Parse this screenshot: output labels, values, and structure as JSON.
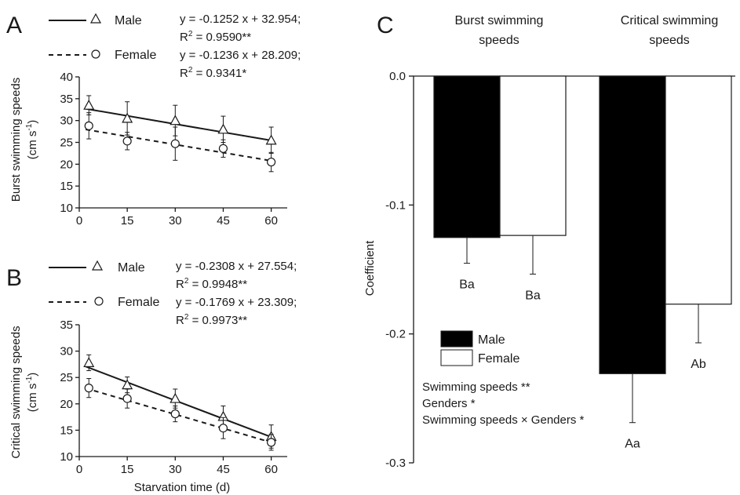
{
  "chart_data": [
    {
      "panel": "A",
      "type": "scatter",
      "xlabel": "",
      "ylabel_line1": "Burst swimming speeds",
      "ylabel_line2_base": "(cm s",
      "ylabel_line2_sup": "-1",
      "ylabel_line2_end": ")",
      "xlim": [
        0,
        65
      ],
      "ylim": [
        10,
        40
      ],
      "xticks": [
        "0",
        "15",
        "30",
        "45",
        "60"
      ],
      "yticks": [
        "10",
        "15",
        "20",
        "25",
        "30",
        "35",
        "40"
      ],
      "series": [
        {
          "name": "Male",
          "marker": "triangle",
          "line": "solid",
          "x": [
            3,
            15,
            30,
            45,
            60
          ],
          "y": [
            33.5,
            30.5,
            30.0,
            28.0,
            25.5
          ],
          "err": [
            2.2,
            3.8,
            3.5,
            3.0,
            3.0
          ],
          "fit": {
            "slope": -0.1252,
            "intercept": 32.954
          },
          "eq": "y = -0.1252 x + 32.954;",
          "r2_prefix": "R",
          "r2_exp": "2",
          "r2_value": " = 0.9590**"
        },
        {
          "name": "Female",
          "marker": "circle",
          "line": "dashed",
          "x": [
            3,
            15,
            30,
            45,
            60
          ],
          "y": [
            28.8,
            25.3,
            24.7,
            23.6,
            20.5
          ],
          "err": [
            3.0,
            2.0,
            3.8,
            2.0,
            2.2
          ],
          "fit": {
            "slope": -0.1236,
            "intercept": 28.209
          },
          "eq": "y = -0.1236 x + 28.209;",
          "r2_prefix": "R",
          "r2_exp": "2",
          "r2_value": " = 0.9341*"
        }
      ]
    },
    {
      "panel": "B",
      "type": "scatter",
      "xlabel": "Starvation time (d)",
      "ylabel_line1": "Critical swimming speeds",
      "ylabel_line2_base": "(cm s",
      "ylabel_line2_sup": "-1",
      "ylabel_line2_end": ")",
      "xlim": [
        0,
        65
      ],
      "ylim": [
        10,
        35
      ],
      "xticks": [
        "0",
        "15",
        "30",
        "45",
        "60"
      ],
      "yticks": [
        "10",
        "15",
        "20",
        "25",
        "30",
        "35"
      ],
      "series": [
        {
          "name": "Male",
          "marker": "triangle",
          "line": "solid",
          "x": [
            3,
            15,
            30,
            45,
            60
          ],
          "y": [
            27.8,
            23.6,
            21.0,
            17.6,
            13.8
          ],
          "err": [
            1.5,
            1.5,
            1.8,
            2.0,
            2.2
          ],
          "fit": {
            "slope": -0.2308,
            "intercept": 27.554
          },
          "eq": "y = -0.2308 x + 27.554;",
          "r2_prefix": "R",
          "r2_exp": "2",
          "r2_value": " = 0.9948**"
        },
        {
          "name": "Female",
          "marker": "circle",
          "line": "dashed",
          "x": [
            3,
            15,
            30,
            45,
            60
          ],
          "y": [
            23.0,
            21.0,
            18.1,
            15.4,
            12.7
          ],
          "err": [
            1.8,
            1.8,
            1.5,
            2.0,
            1.5
          ],
          "fit": {
            "slope": -0.1769,
            "intercept": 23.309
          },
          "eq": "y = -0.1769 x + 23.309;",
          "r2_prefix": "R",
          "r2_exp": "2",
          "r2_value": " = 0.9973**"
        }
      ]
    },
    {
      "panel": "C",
      "type": "bar",
      "ylabel": "Coefficient",
      "ylim": [
        -0.3,
        0.0
      ],
      "yticks": [
        "0.0",
        "-0.1",
        "-0.2",
        "-0.3"
      ],
      "categories": [
        "Burst swimming speeds",
        "Critical swimming speeds"
      ],
      "category_lines": [
        [
          "Burst swimming",
          "speeds"
        ],
        [
          "Critical swimming",
          "speeds"
        ]
      ],
      "series": [
        {
          "name": "Male",
          "color": "#000000",
          "values": [
            -0.1252,
            -0.2308
          ],
          "err": [
            0.02,
            0.038
          ],
          "labels": [
            "Ba",
            "Aa"
          ]
        },
        {
          "name": "Female",
          "color": "#ffffff",
          "values": [
            -0.1236,
            -0.1769
          ],
          "err": [
            0.03,
            0.03
          ],
          "labels": [
            "Ba",
            "Ab"
          ]
        }
      ],
      "annotations": [
        "Swimming speeds **",
        "Genders *",
        "Swimming speeds × Genders *"
      ]
    }
  ]
}
